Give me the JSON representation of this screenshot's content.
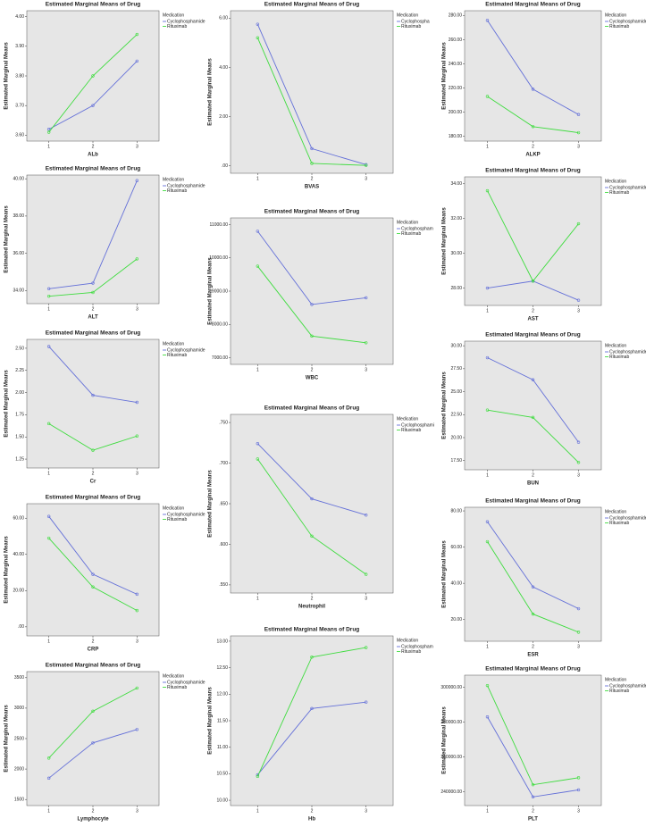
{
  "chart_data": [
    {
      "type": "line",
      "title": "Estimated Marginal Means of Drug",
      "x_label": "ALb",
      "y_label": "Estimated Marginal Means",
      "legend_title": "Medication",
      "categories": [
        "1",
        "2",
        "3"
      ],
      "series": [
        {
          "name": "Cyclophosphamide",
          "color": "#6470d8",
          "values": [
            3.62,
            3.7,
            3.85
          ]
        },
        {
          "name": "Rituximab",
          "color": "#3fdc3f",
          "values": [
            3.61,
            3.8,
            3.94
          ]
        }
      ],
      "ylim": [
        3.58,
        4.02
      ],
      "yticks": [
        {
          "value": 3.6,
          "label": "3.60"
        },
        {
          "value": 3.7,
          "label": "3.70"
        },
        {
          "value": 3.8,
          "label": "3.80"
        },
        {
          "value": 3.9,
          "label": "3.90"
        },
        {
          "value": 4,
          "label": "4.00"
        }
      ]
    },
    {
      "type": "line",
      "title": "Estimated Marginal Means of Drug",
      "x_label": "ALT",
      "y_label": "Estimated Marginal Means",
      "legend_title": "Medication",
      "categories": [
        "1",
        "2",
        "3"
      ],
      "series": [
        {
          "name": "Cyclophosphamide",
          "color": "#6470d8",
          "values": [
            34.1,
            34.4,
            39.9
          ]
        },
        {
          "name": "Rituximab",
          "color": "#3fdc3f",
          "values": [
            33.7,
            33.9,
            35.7
          ]
        }
      ],
      "ylim": [
        33.3,
        40.2
      ],
      "yticks": [
        {
          "value": 34,
          "label": "34.00"
        },
        {
          "value": 36,
          "label": "36.00"
        },
        {
          "value": 38,
          "label": "38.00"
        },
        {
          "value": 40,
          "label": "40.00"
        }
      ]
    },
    {
      "type": "line",
      "title": "Estimated Marginal Means of Drug",
      "x_label": "Cr",
      "y_label": "Estimated Marginal Means",
      "legend_title": "Medication",
      "categories": [
        "1",
        "2",
        "3"
      ],
      "series": [
        {
          "name": "Cyclophosphamide",
          "color": "#6470d8",
          "values": [
            2.52,
            1.97,
            1.89
          ]
        },
        {
          "name": "Rituximab",
          "color": "#3fdc3f",
          "values": [
            1.65,
            1.35,
            1.51
          ]
        }
      ],
      "ylim": [
        1.15,
        2.6
      ],
      "yticks": [
        {
          "value": 1.25,
          "label": "1.25"
        },
        {
          "value": 1.5,
          "label": "1.50"
        },
        {
          "value": 1.75,
          "label": "1.75"
        },
        {
          "value": 2,
          "label": "2.00"
        },
        {
          "value": 2.25,
          "label": "2.25"
        },
        {
          "value": 2.5,
          "label": "2.50"
        }
      ]
    },
    {
      "type": "line",
      "title": "Estimated Marginal Means of Drug",
      "x_label": "CRP",
      "y_label": "Estimated Marginal Means",
      "legend_title": "Medication",
      "categories": [
        "1",
        "2",
        "3"
      ],
      "series": [
        {
          "name": "Cyclophosphamide",
          "color": "#6470d8",
          "values": [
            61,
            29,
            18
          ]
        },
        {
          "name": "Rituximab",
          "color": "#3fdc3f",
          "values": [
            49,
            22,
            9
          ]
        }
      ],
      "ylim": [
        -5,
        68
      ],
      "yticks": [
        {
          "value": 0,
          "label": ".00"
        },
        {
          "value": 20,
          "label": "20.00"
        },
        {
          "value": 40,
          "label": "40.00"
        },
        {
          "value": 60,
          "label": "60.00"
        }
      ]
    },
    {
      "type": "line",
      "title": "Estimated Marginal Means of Drug",
      "x_label": "Lymphocyte",
      "y_label": "Estimated Marginal Means",
      "legend_title": "Medication",
      "categories": [
        "1",
        "2",
        "3"
      ],
      "series": [
        {
          "name": "Cyclophosphamide",
          "color": "#6470d8",
          "values": [
            1850,
            2430,
            2650
          ]
        },
        {
          "name": "Rituximab",
          "color": "#3fdc3f",
          "values": [
            2180,
            2950,
            3330
          ]
        }
      ],
      "ylim": [
        1400,
        3600
      ],
      "yticks": [
        1500,
        2000,
        2500,
        3000,
        3500
      ]
    },
    {
      "type": "line",
      "title": "Estimated Marginal Means of Drug",
      "x_label": "BVAS",
      "y_label": "Estimated Marginal Means",
      "legend_title": "Medication",
      "categories": [
        "1",
        "2",
        "3"
      ],
      "series": [
        {
          "name": "Cyclophospha",
          "color": "#6470d8",
          "values": [
            5.75,
            0.7,
            0.05
          ]
        },
        {
          "name": "Rituximab",
          "color": "#3fdc3f",
          "values": [
            5.2,
            0.1,
            0.02
          ]
        }
      ],
      "ylim": [
        -0.3,
        6.3
      ],
      "yticks": [
        {
          "value": 0,
          "label": ".00"
        },
        {
          "value": 2,
          "label": "2.00"
        },
        {
          "value": 4,
          "label": "4.00"
        },
        {
          "value": 6,
          "label": "6.00"
        }
      ]
    },
    {
      "type": "line",
      "title": "Estimated Marginal Means of Drug",
      "x_label": "WBC",
      "y_label": "Estimated Marginal Means",
      "legend_title": "Medication",
      "categories": [
        "1",
        "2",
        "3"
      ],
      "series": [
        {
          "name": "Cyclophospham",
          "color": "#6470d8",
          "values": [
            10800,
            8600,
            8800
          ]
        },
        {
          "name": "Rituximab",
          "color": "#3fdc3f",
          "values": [
            9750,
            7650,
            7450
          ]
        }
      ],
      "ylim": [
        6800,
        11200
      ],
      "yticks": [
        {
          "value": 7000,
          "label": "7000.00"
        },
        {
          "value": 8000,
          "label": "8000.00"
        },
        {
          "value": 9000,
          "label": "9000.00"
        },
        {
          "value": 10000,
          "label": "10000.00"
        },
        {
          "value": 11000,
          "label": "11000.00"
        }
      ]
    },
    {
      "type": "line",
      "title": "Estimated Marginal Means of Drug",
      "x_label": "Neutrophil",
      "y_label": "Estimated Marginal Means",
      "legend_title": "Medication",
      "categories": [
        "1",
        "2",
        "3"
      ],
      "series": [
        {
          "name": "Cyclophosphami",
          "color": "#6470d8",
          "values": [
            0.724,
            0.656,
            0.636
          ]
        },
        {
          "name": "Rituximab",
          "color": "#3fdc3f",
          "values": [
            0.705,
            0.61,
            0.563
          ]
        }
      ],
      "ylim": [
        0.54,
        0.76
      ],
      "yticks": [
        {
          "value": 0.55,
          "label": ".550"
        },
        {
          "value": 0.6,
          "label": ".600"
        },
        {
          "value": 0.65,
          "label": ".650"
        },
        {
          "value": 0.7,
          "label": ".700"
        },
        {
          "value": 0.75,
          "label": ".750"
        }
      ]
    },
    {
      "type": "line",
      "title": "Estimated Marginal Means of Drug",
      "x_label": "Hb",
      "y_label": "Estimated Marginal Means",
      "legend_title": "Medication",
      "categories": [
        "1",
        "2",
        "3"
      ],
      "series": [
        {
          "name": "Cyclophospham",
          "color": "#6470d8",
          "values": [
            10.48,
            11.73,
            11.85
          ]
        },
        {
          "name": "Rituximab",
          "color": "#3fdc3f",
          "values": [
            10.45,
            12.7,
            12.88
          ]
        }
      ],
      "ylim": [
        9.9,
        13.1
      ],
      "yticks": [
        {
          "value": 10,
          "label": "10.00"
        },
        {
          "value": 10.5,
          "label": "10.50"
        },
        {
          "value": 11,
          "label": "11.00"
        },
        {
          "value": 11.5,
          "label": "11.50"
        },
        {
          "value": 12,
          "label": "12.00"
        },
        {
          "value": 12.5,
          "label": "12.50"
        },
        {
          "value": 13,
          "label": "13.00"
        }
      ]
    },
    {
      "type": "line",
      "title": "Estimated Marginal Means of Drug",
      "x_label": "ALKP",
      "y_label": "Estimated Marginal Means",
      "legend_title": "Medication",
      "categories": [
        "1",
        "2",
        "3"
      ],
      "series": [
        {
          "name": "Cyclophosphamide",
          "color": "#6470d8",
          "values": [
            276,
            219,
            198
          ]
        },
        {
          "name": "Rituximab",
          "color": "#3fdc3f",
          "values": [
            213,
            188,
            183
          ]
        }
      ],
      "ylim": [
        176,
        284
      ],
      "yticks": [
        {
          "value": 180,
          "label": "180.00"
        },
        {
          "value": 200,
          "label": "200.00"
        },
        {
          "value": 220,
          "label": "220.00"
        },
        {
          "value": 240,
          "label": "240.00"
        },
        {
          "value": 260,
          "label": "260.00"
        },
        {
          "value": 280,
          "label": "280.00"
        }
      ]
    },
    {
      "type": "line",
      "title": "Estimated Marginal Means of Drug",
      "x_label": "AST",
      "y_label": "Estimated Marginal Means",
      "legend_title": "Medication",
      "categories": [
        "1",
        "2",
        "3"
      ],
      "series": [
        {
          "name": "Cyclophosphamide",
          "color": "#6470d8",
          "values": [
            28.0,
            28.4,
            27.3
          ]
        },
        {
          "name": "Rituximab",
          "color": "#3fdc3f",
          "values": [
            33.6,
            28.4,
            31.7
          ]
        }
      ],
      "ylim": [
        27,
        34.4
      ],
      "yticks": [
        {
          "value": 28,
          "label": "28.00"
        },
        {
          "value": 30,
          "label": "30.00"
        },
        {
          "value": 32,
          "label": "32.00"
        },
        {
          "value": 34,
          "label": "34.00"
        }
      ]
    },
    {
      "type": "line",
      "title": "Estimated Marginal Means of Drug",
      "x_label": "BUN",
      "y_label": "Estimated Marginal Means",
      "legend_title": "Medication",
      "categories": [
        "1",
        "2",
        "3"
      ],
      "series": [
        {
          "name": "Cyclophosphamide",
          "color": "#6470d8",
          "values": [
            28.7,
            26.3,
            19.5
          ]
        },
        {
          "name": "Rituximab",
          "color": "#3fdc3f",
          "values": [
            23.0,
            22.2,
            17.3
          ]
        }
      ],
      "ylim": [
        16.5,
        30.5
      ],
      "yticks": [
        {
          "value": 17.5,
          "label": "17.50"
        },
        {
          "value": 20,
          "label": "20.00"
        },
        {
          "value": 22.5,
          "label": "22.50"
        },
        {
          "value": 25,
          "label": "25.00"
        },
        {
          "value": 27.5,
          "label": "27.50"
        },
        {
          "value": 30,
          "label": "30.00"
        }
      ]
    },
    {
      "type": "line",
      "title": "Estimated Marginal Means of Drug",
      "x_label": "ESR",
      "y_label": "Estimated Marginal Means",
      "legend_title": "Medication",
      "categories": [
        "1",
        "2",
        "3"
      ],
      "series": [
        {
          "name": "Cyclophosphamide",
          "color": "#6470d8",
          "values": [
            74,
            38,
            26
          ]
        },
        {
          "name": "Rituximab",
          "color": "#3fdc3f",
          "values": [
            63,
            23,
            13
          ]
        }
      ],
      "ylim": [
        8,
        82
      ],
      "yticks": [
        {
          "value": 20,
          "label": "20.00"
        },
        {
          "value": 40,
          "label": "40.00"
        },
        {
          "value": 60,
          "label": "60.00"
        },
        {
          "value": 80,
          "label": "80.00"
        }
      ]
    },
    {
      "type": "line",
      "title": "Estimated Marginal Means of Drug",
      "x_label": "PLT",
      "y_label": "Estimated Marginal Means",
      "legend_title": "Medication",
      "categories": [
        "1",
        "2",
        "3"
      ],
      "series": [
        {
          "name": "Cyclophosphamide",
          "color": "#6470d8",
          "values": [
            283000,
            237000,
            241000
          ]
        },
        {
          "name": "Rituximab",
          "color": "#3fdc3f",
          "values": [
            301000,
            244000,
            248000
          ]
        }
      ],
      "ylim": [
        232000,
        307000
      ],
      "yticks": [
        {
          "value": 240000,
          "label": "240000.00"
        },
        {
          "value": 260000,
          "label": "260000.00"
        },
        {
          "value": 280000,
          "label": "280000.00"
        },
        {
          "value": 300000,
          "label": "300000.00"
        }
      ]
    }
  ]
}
